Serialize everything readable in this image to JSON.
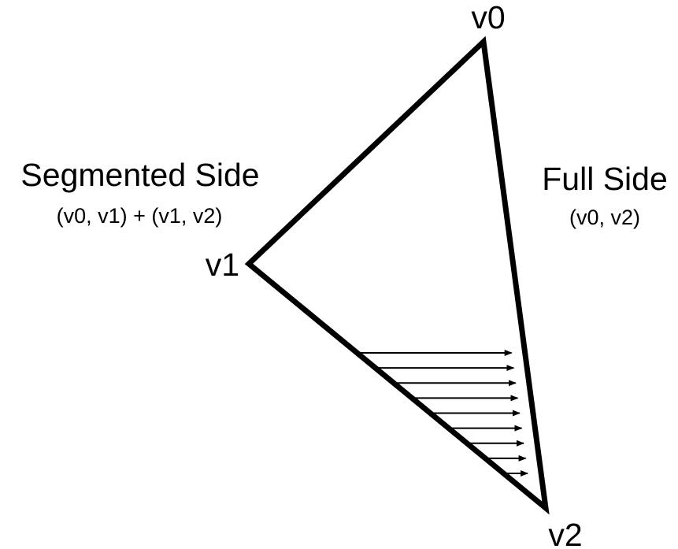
{
  "colors": {
    "background": "#ffffff",
    "stroke": "#000000"
  },
  "vertices": {
    "v0": "v0",
    "v1": "v1",
    "v2": "v2"
  },
  "segmented_side": {
    "title": "Segmented Side",
    "subtitle": "(v0, v1) + (v1, v2)"
  },
  "full_side": {
    "title": "Full Side",
    "subtitle": "(v0, v2)"
  },
  "scanline_arrow_count": 9
}
